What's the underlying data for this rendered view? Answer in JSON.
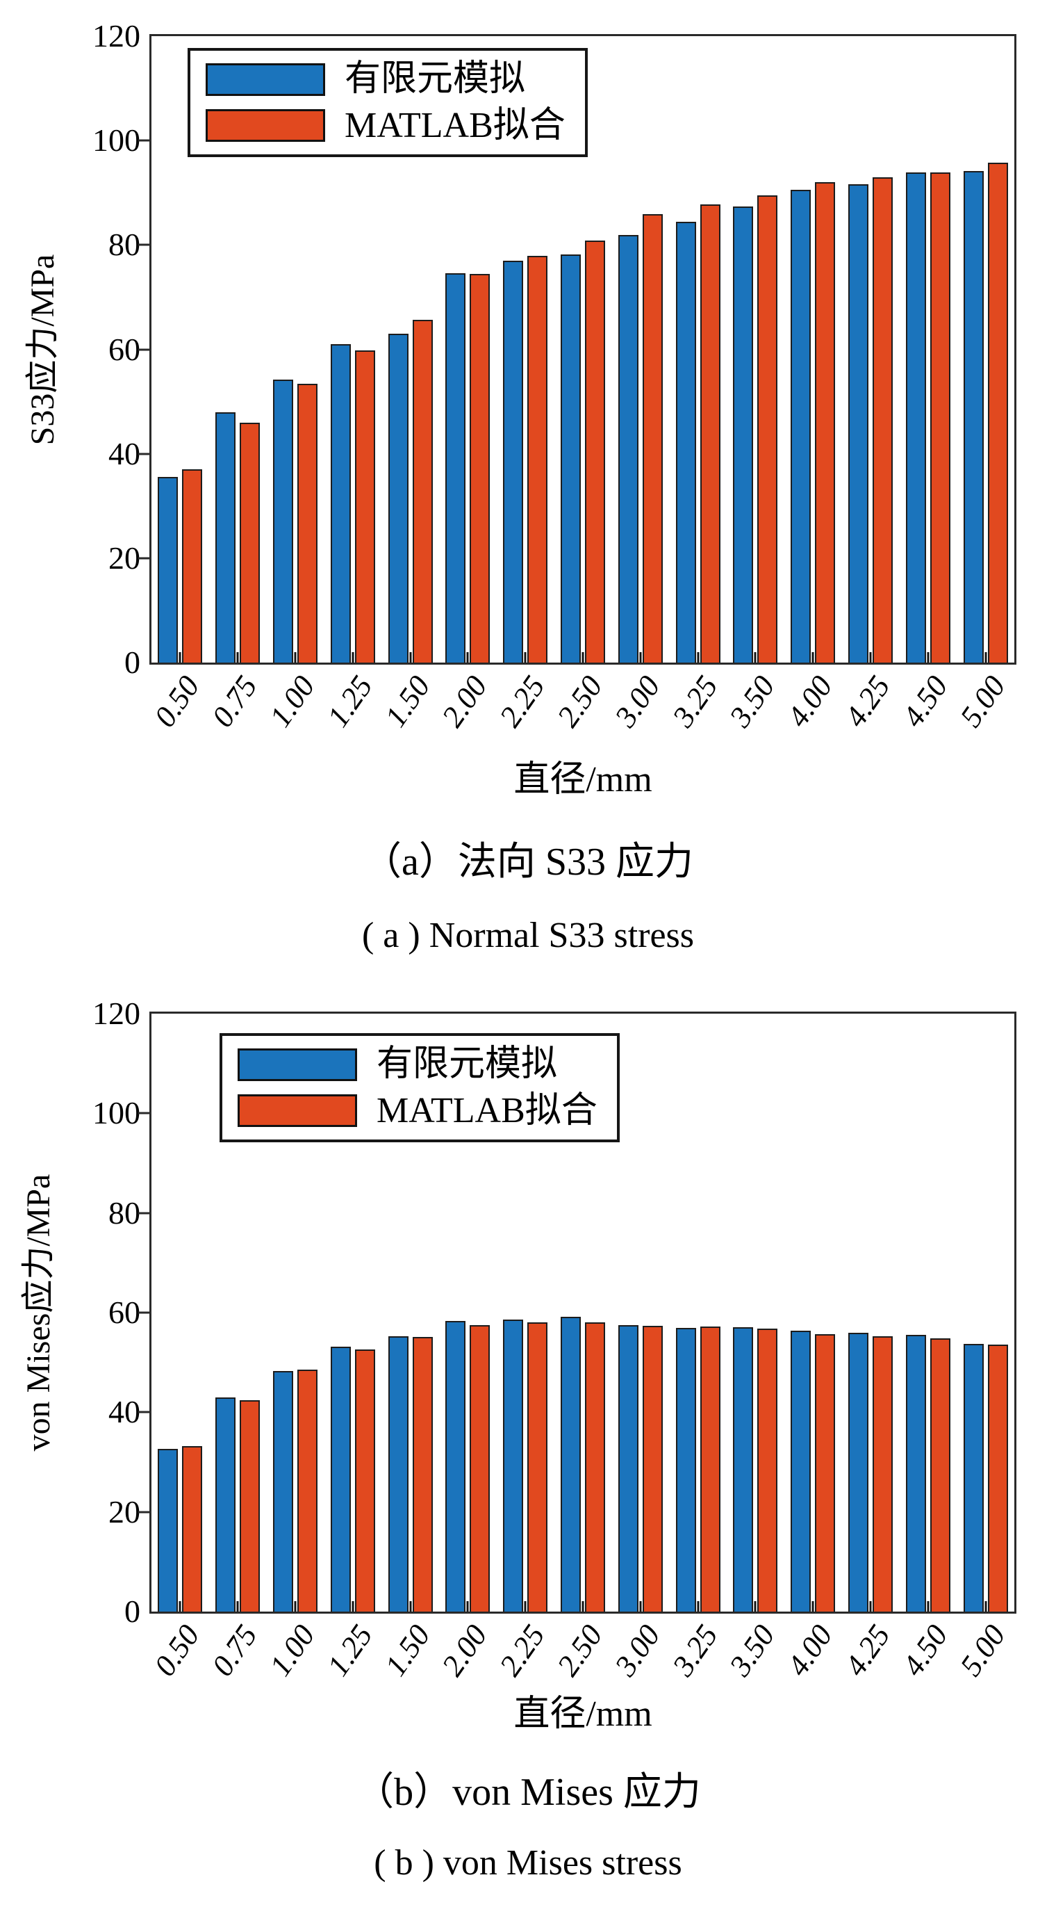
{
  "chart_data": [
    {
      "type": "bar",
      "caption_zh": "（a）法向 S33 应力",
      "caption_en": "( a ) Normal S33 stress",
      "xlabel": "直径/mm",
      "ylabel": "S33应力/MPa",
      "ylim": [
        0,
        120
      ],
      "yticks": [
        0,
        20,
        40,
        60,
        80,
        100,
        120
      ],
      "grid": false,
      "legend_position": "top-left",
      "categories": [
        "0.50",
        "0.75",
        "1.00",
        "1.25",
        "1.50",
        "2.00",
        "2.25",
        "2.50",
        "3.00",
        "3.25",
        "3.50",
        "4.00",
        "4.25",
        "4.50",
        "5.00"
      ],
      "series": [
        {
          "name": "有限元模拟",
          "color": "#1b74bc",
          "values": [
            35.5,
            48.0,
            54.2,
            61.0,
            63.0,
            74.6,
            77.0,
            78.2,
            81.9,
            84.5,
            87.4,
            90.6,
            91.6,
            93.9,
            94.2
          ]
        },
        {
          "name": "MATLAB拟合",
          "color": "#e1491f",
          "values": [
            37.0,
            45.9,
            53.4,
            59.8,
            65.6,
            74.4,
            77.9,
            80.9,
            85.9,
            87.8,
            89.5,
            92.0,
            93.0,
            93.9,
            95.8
          ]
        }
      ]
    },
    {
      "type": "bar",
      "caption_zh": "（b）von Mises 应力",
      "caption_en": "( b ) von Mises stress",
      "xlabel": "直径/mm",
      "ylabel": "von Mises应力/MPa",
      "ylim": [
        0,
        120
      ],
      "yticks": [
        0,
        20,
        40,
        60,
        80,
        100,
        120
      ],
      "grid": false,
      "legend_position": "top-left",
      "categories": [
        "0.50",
        "0.75",
        "1.00",
        "1.25",
        "1.50",
        "2.00",
        "2.25",
        "2.50",
        "3.00",
        "3.25",
        "3.50",
        "4.00",
        "4.25",
        "4.50",
        "5.00"
      ],
      "series": [
        {
          "name": "有限元模拟",
          "color": "#1b74bc",
          "values": [
            32.6,
            43.0,
            48.3,
            53.2,
            55.3,
            58.3,
            58.6,
            59.2,
            57.5,
            57.0,
            57.1,
            56.4,
            56.0,
            55.5,
            53.7
          ]
        },
        {
          "name": "MATLAB拟合",
          "color": "#e1491f",
          "values": [
            33.2,
            42.4,
            48.5,
            52.6,
            55.1,
            57.5,
            58.0,
            58.0,
            57.3,
            57.2,
            56.8,
            55.7,
            55.2,
            54.9,
            53.6
          ]
        }
      ]
    }
  ],
  "styles": {
    "bar_edge_color": "#1c1c1c",
    "axis_color": "#2a2a2a",
    "background": "#ffffff"
  }
}
